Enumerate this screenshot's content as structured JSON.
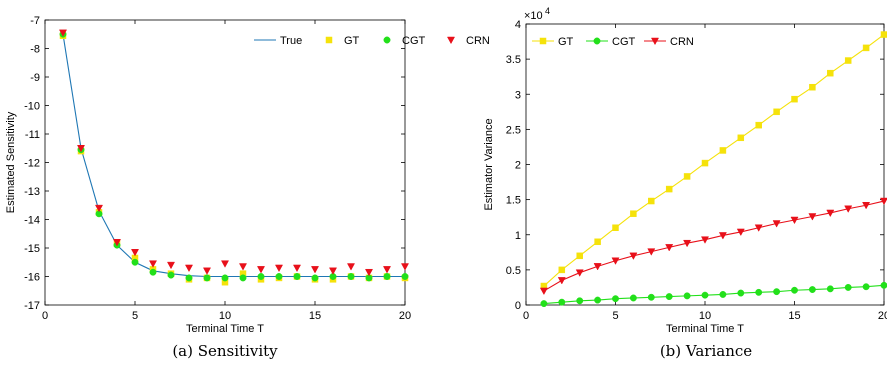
{
  "chart_data": [
    {
      "id": "sensitivity",
      "type": "line",
      "caption": "(a)  Sensitivity",
      "xlabel": "Terminal Time T",
      "ylabel": "Estimated Sensitivity",
      "xlim": [
        0,
        20
      ],
      "ylim": [
        -17,
        -7
      ],
      "xticks": [
        0,
        5,
        10,
        15,
        20
      ],
      "yticks": [
        -17,
        -16,
        -15,
        -14,
        -13,
        -12,
        -11,
        -10,
        -9,
        -8,
        -7
      ],
      "grid": false,
      "legend_position": "top-right",
      "x": [
        1,
        2,
        3,
        4,
        5,
        6,
        7,
        8,
        9,
        10,
        11,
        12,
        13,
        14,
        15,
        16,
        17,
        18,
        19,
        20
      ],
      "series": [
        {
          "name": "True",
          "style": "line",
          "color": "#1f77b4",
          "values": [
            -7.5,
            -11.5,
            -13.7,
            -14.9,
            -15.5,
            -15.8,
            -15.9,
            -15.97,
            -16.0,
            -16.0,
            -16.0,
            -16.0,
            -16.0,
            -16.0,
            -16.0,
            -16.0,
            -16.0,
            -16.0,
            -16.0,
            -16.0
          ]
        },
        {
          "name": "GT",
          "style": "marker-square",
          "color": "#f5e20a",
          "values": [
            -7.55,
            -11.6,
            -13.75,
            -14.85,
            -15.35,
            -15.75,
            -15.9,
            -16.1,
            -16.05,
            -16.2,
            -15.9,
            -16.1,
            -16.05,
            -16.0,
            -16.1,
            -16.1,
            -16.0,
            -16.05,
            -16.0,
            -16.05
          ]
        },
        {
          "name": "CGT",
          "style": "marker-circle",
          "color": "#22e01a",
          "values": [
            -7.5,
            -11.55,
            -13.8,
            -14.9,
            -15.5,
            -15.85,
            -15.95,
            -16.05,
            -16.05,
            -16.05,
            -16.05,
            -16.0,
            -16.0,
            -16.0,
            -16.05,
            -16.0,
            -16.0,
            -16.05,
            -16.0,
            -16.0
          ]
        },
        {
          "name": "CRN",
          "style": "marker-triangle-down",
          "color": "#e8101a",
          "values": [
            -7.45,
            -11.5,
            -13.6,
            -14.8,
            -15.15,
            -15.55,
            -15.6,
            -15.7,
            -15.8,
            -15.55,
            -15.65,
            -15.75,
            -15.7,
            -15.7,
            -15.75,
            -15.8,
            -15.65,
            -15.85,
            -15.75,
            -15.65
          ]
        }
      ]
    },
    {
      "id": "variance",
      "type": "line",
      "caption": "(b)  Variance",
      "xlabel": "Terminal Time T",
      "ylabel": "Estimator Variance",
      "exponent_base": "×10",
      "exponent_power": "4",
      "xlim": [
        0,
        20
      ],
      "ylim": [
        0,
        4
      ],
      "xticks": [
        0,
        5,
        10,
        15,
        20
      ],
      "yticks": [
        0,
        0.5,
        1,
        1.5,
        2,
        2.5,
        3,
        3.5,
        4
      ],
      "grid": false,
      "legend_position": "top-left",
      "x": [
        1,
        2,
        3,
        4,
        5,
        6,
        7,
        8,
        9,
        10,
        11,
        12,
        13,
        14,
        15,
        16,
        17,
        18,
        19,
        20
      ],
      "series": [
        {
          "name": "GT",
          "style": "line-square",
          "color": "#f5e20a",
          "values": [
            0.27,
            0.5,
            0.7,
            0.9,
            1.1,
            1.3,
            1.48,
            1.65,
            1.83,
            2.02,
            2.2,
            2.38,
            2.56,
            2.75,
            2.93,
            3.1,
            3.3,
            3.48,
            3.66,
            3.85
          ]
        },
        {
          "name": "CGT",
          "style": "line-circle",
          "color": "#22e01a",
          "values": [
            0.02,
            0.04,
            0.06,
            0.07,
            0.09,
            0.1,
            0.11,
            0.12,
            0.13,
            0.14,
            0.15,
            0.17,
            0.18,
            0.19,
            0.21,
            0.22,
            0.23,
            0.25,
            0.26,
            0.28
          ]
        },
        {
          "name": "CRN",
          "style": "line-triangle-down",
          "color": "#e8101a",
          "values": [
            0.2,
            0.35,
            0.46,
            0.55,
            0.63,
            0.7,
            0.76,
            0.82,
            0.88,
            0.93,
            0.99,
            1.04,
            1.1,
            1.16,
            1.21,
            1.26,
            1.31,
            1.37,
            1.42,
            1.48
          ]
        }
      ]
    }
  ]
}
